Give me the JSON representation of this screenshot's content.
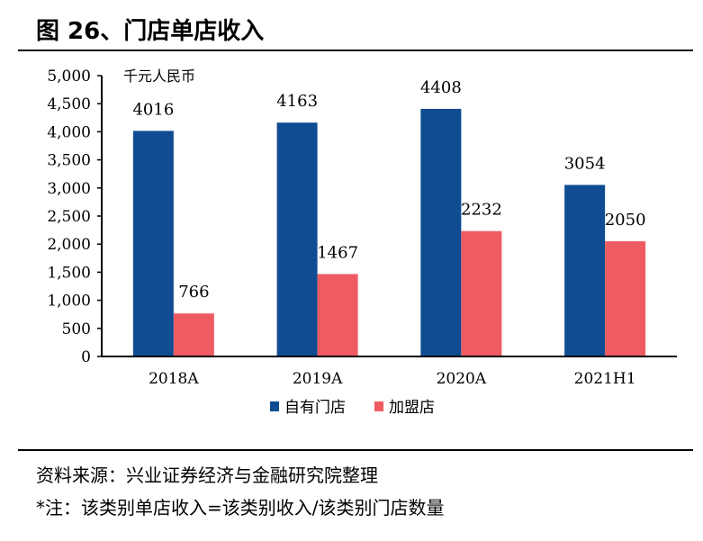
{
  "title": "图 26、门店单店收入",
  "source": "资料来源：兴业证券经济与金融研究院整理",
  "note": "*注：该类别单店收入=该类别收入/该类别门店数量",
  "chart_data": {
    "type": "bar",
    "ylabel": "千元人民币",
    "categories": [
      "2018A",
      "2019A",
      "2020A",
      "2021H1"
    ],
    "series": [
      {
        "name": "自有门店",
        "values": [
          4016,
          4163,
          4408,
          3054
        ],
        "color": "#0F4C92"
      },
      {
        "name": "加盟店",
        "values": [
          766,
          1467,
          2232,
          2050
        ],
        "color": "#EE5C62"
      }
    ],
    "ylim": [
      0,
      5000
    ],
    "yticks": [
      "0",
      "500",
      "1,000",
      "1,500",
      "2,000",
      "2,500",
      "3,000",
      "3,500",
      "4,000",
      "4,500",
      "5,000"
    ],
    "grid": false,
    "legend": "bottom"
  }
}
